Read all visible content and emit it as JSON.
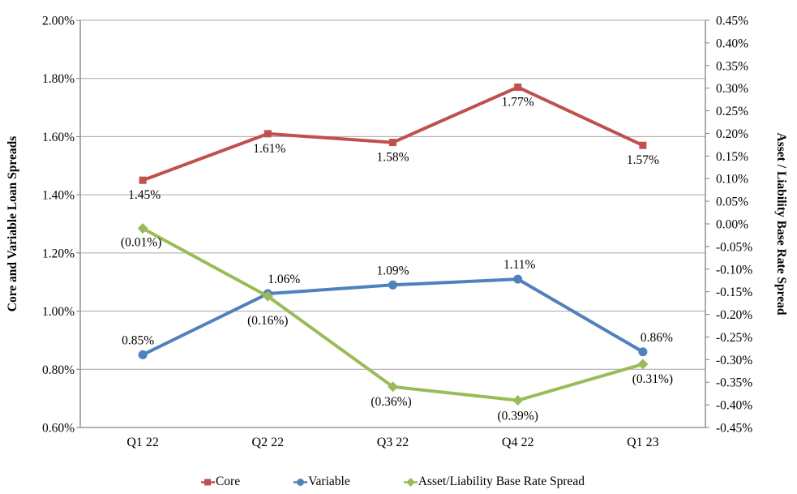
{
  "chart_data": {
    "type": "line",
    "categories": [
      "Q1 22",
      "Q2 22",
      "Q3 22",
      "Q4 22",
      "Q1 23"
    ],
    "series": [
      {
        "name": "Core",
        "axis": "left",
        "color": "#C0504D",
        "marker": "square",
        "values": [
          1.45,
          1.61,
          1.58,
          1.77,
          1.57
        ],
        "data_labels": [
          "1.45%",
          "1.61%",
          "1.58%",
          "1.77%",
          "1.57%"
        ],
        "label_position": "below"
      },
      {
        "name": "Variable",
        "axis": "left",
        "color": "#4F81BD",
        "marker": "circle",
        "values": [
          0.85,
          1.06,
          1.09,
          1.11,
          0.86
        ],
        "data_labels": [
          "0.85%",
          "1.06%",
          "1.09%",
          "1.11%",
          "0.86%"
        ],
        "label_position": "above"
      },
      {
        "name": "Asset/Liability Base Rate Spread",
        "axis": "right",
        "color": "#9BBB59",
        "marker": "diamond",
        "values": [
          -0.01,
          -0.16,
          -0.36,
          -0.39,
          -0.31
        ],
        "data_labels": [
          "(0.01%)",
          "(0.16%)",
          "(0.36%)",
          "(0.39%)",
          "(0.31%)"
        ],
        "label_position": "below"
      }
    ],
    "left_axis": {
      "title": "Core and Variable Loan Spreads",
      "min": 0.6,
      "max": 2.0,
      "step": 0.2,
      "tick_labels": [
        "2.00%",
        "1.80%",
        "1.60%",
        "1.40%",
        "1.20%",
        "1.00%",
        "0.80%",
        "0.60%"
      ]
    },
    "right_axis": {
      "title": "Asset / Liability Base Rate Spread",
      "min": -0.45,
      "max": 0.45,
      "step": 0.05,
      "tick_labels": [
        "0.45%",
        "0.40%",
        "0.35%",
        "0.30%",
        "0.25%",
        "0.20%",
        "0.15%",
        "0.10%",
        "0.05%",
        "0.00%",
        "-0.05%",
        "-0.10%",
        "-0.15%",
        "-0.20%",
        "-0.25%",
        "-0.30%",
        "-0.35%",
        "-0.40%",
        "-0.45%"
      ]
    },
    "legend": {
      "entries": [
        "Core",
        "Variable",
        "Asset/Liability Base Rate Spread"
      ],
      "position": "bottom"
    },
    "grid": true,
    "colors": {
      "background": "#FFFFFF",
      "gridline": "#A6A6A6",
      "axis_line": "#808080",
      "text": "#000000"
    }
  }
}
